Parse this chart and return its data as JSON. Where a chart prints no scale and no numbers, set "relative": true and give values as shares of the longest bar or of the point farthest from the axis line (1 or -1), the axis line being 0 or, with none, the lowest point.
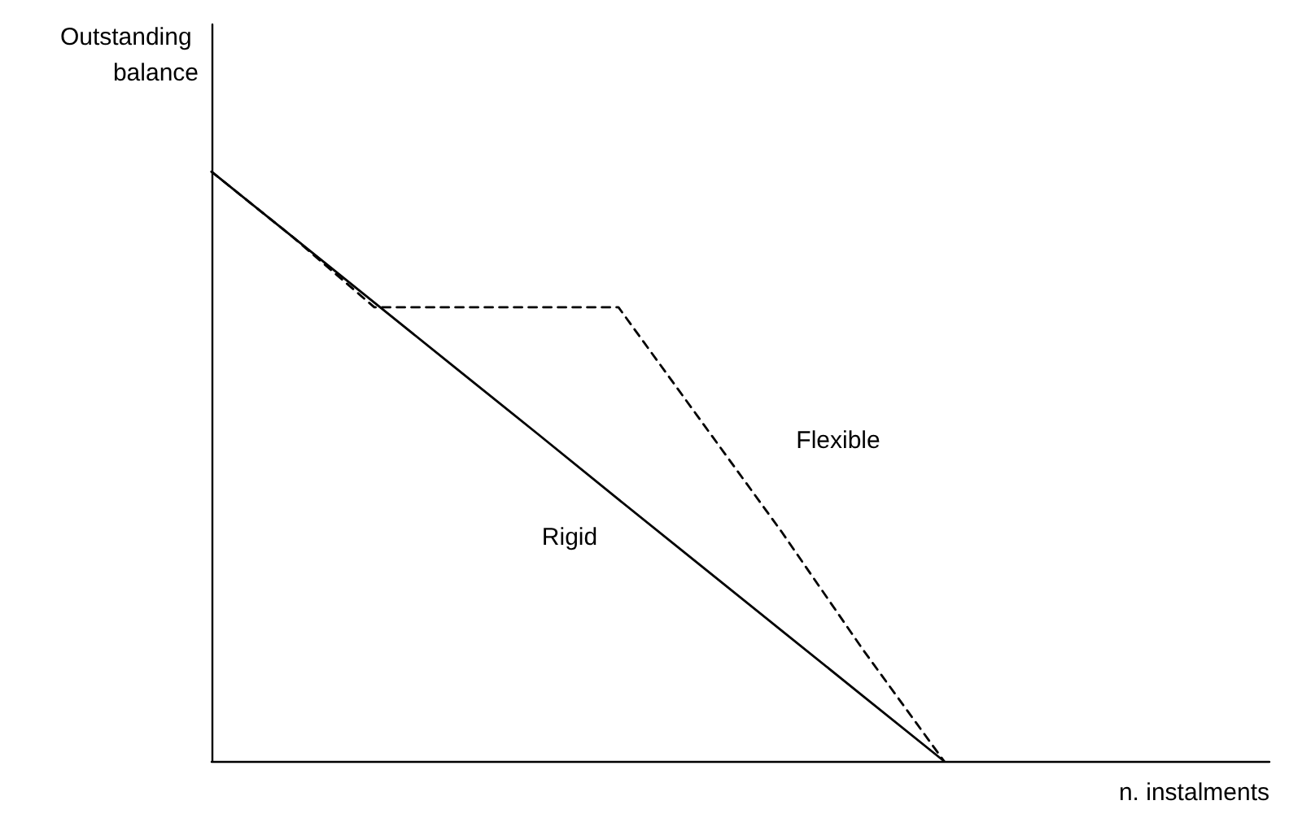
{
  "chart_data": {
    "type": "line",
    "relative": true,
    "xlabel": "n. instalments",
    "ylabel": "Outstanding balance",
    "grid": false,
    "legend": false,
    "marker": "none",
    "categories": [
      null,
      null,
      null,
      null,
      null,
      null,
      null,
      null,
      null,
      null,
      null,
      null,
      null,
      null
    ],
    "series": [
      {
        "name": "Rigid",
        "color": "#000000",
        "line_style": "solid",
        "values": [
          1,
          0.889,
          0.778,
          0.667,
          0.556,
          0.444,
          0.333,
          0.222,
          0.111,
          0,
          null,
          null,
          null,
          null
        ]
      },
      {
        "name": "Flexible",
        "color": "#000000",
        "line_style": "dashed",
        "values": [
          1,
          0.889,
          0.77,
          0.77,
          0.77,
          0.77,
          0.58,
          0.39,
          0.19,
          0,
          null,
          null,
          null,
          null
        ]
      }
    ]
  }
}
